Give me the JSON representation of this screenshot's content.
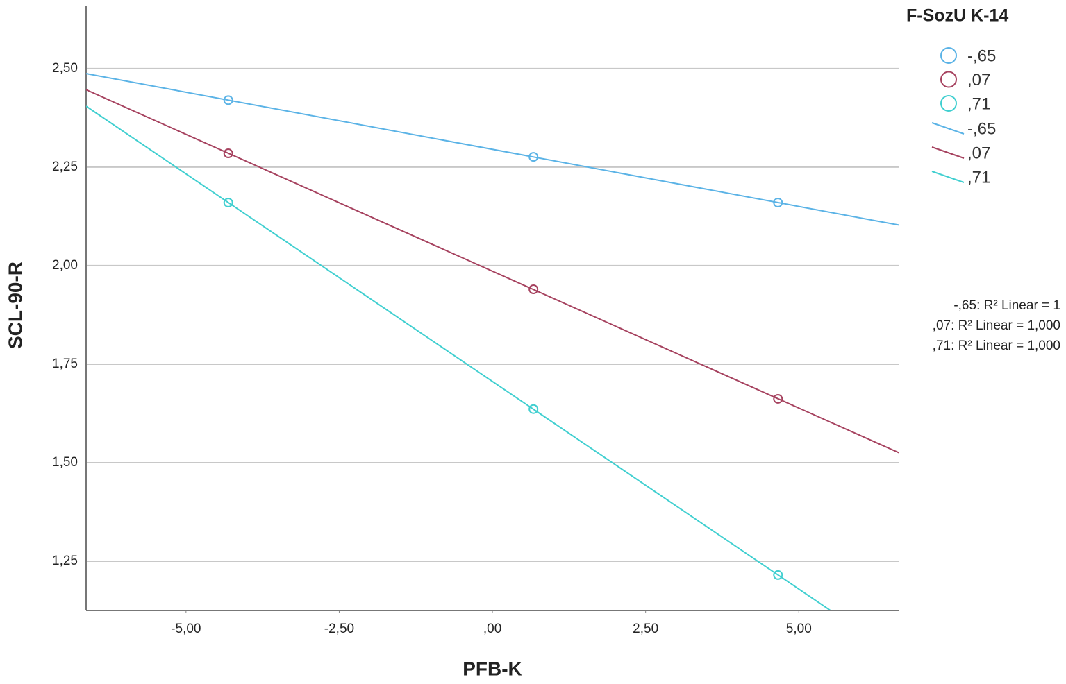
{
  "chart_data": {
    "type": "scatter",
    "x_label": "PFB-K",
    "y_label": "SCL-90-R",
    "legend_title": "F-SozU K-14",
    "x": [
      -4.31,
      0.67,
      4.66
    ],
    "series": [
      {
        "name": "-,65",
        "color": "#5bb3e6",
        "values": [
          2.42,
          2.276,
          2.16
        ]
      },
      {
        "name": ",07",
        "color": "#a6425f",
        "values": [
          2.285,
          1.94,
          1.662
        ]
      },
      {
        "name": ",71",
        "color": "#40cfd0",
        "values": [
          2.16,
          1.636,
          1.215
        ]
      }
    ],
    "fit_labels": [
      "-,65: R² Linear = 1",
      ",07: R² Linear = 1,000",
      ",71: R² Linear = 1,000"
    ],
    "xlim": [
      -6.63,
      6.64
    ],
    "ylim": [
      1.125,
      2.66
    ],
    "xticks": [
      {
        "value": -5,
        "label": "-5,00"
      },
      {
        "value": -2.5,
        "label": "-2,50"
      },
      {
        "value": 0,
        "label": ",00"
      },
      {
        "value": 2.5,
        "label": "2,50"
      },
      {
        "value": 5,
        "label": "5,00"
      }
    ],
    "yticks": [
      {
        "value": 1.25,
        "label": "1,25"
      },
      {
        "value": 1.5,
        "label": "1,50"
      },
      {
        "value": 1.75,
        "label": "1,75"
      },
      {
        "value": 2.0,
        "label": "2,00"
      },
      {
        "value": 2.25,
        "label": "2,25"
      },
      {
        "value": 2.5,
        "label": "2,50"
      }
    ],
    "grid": true,
    "fit_lines": true
  }
}
